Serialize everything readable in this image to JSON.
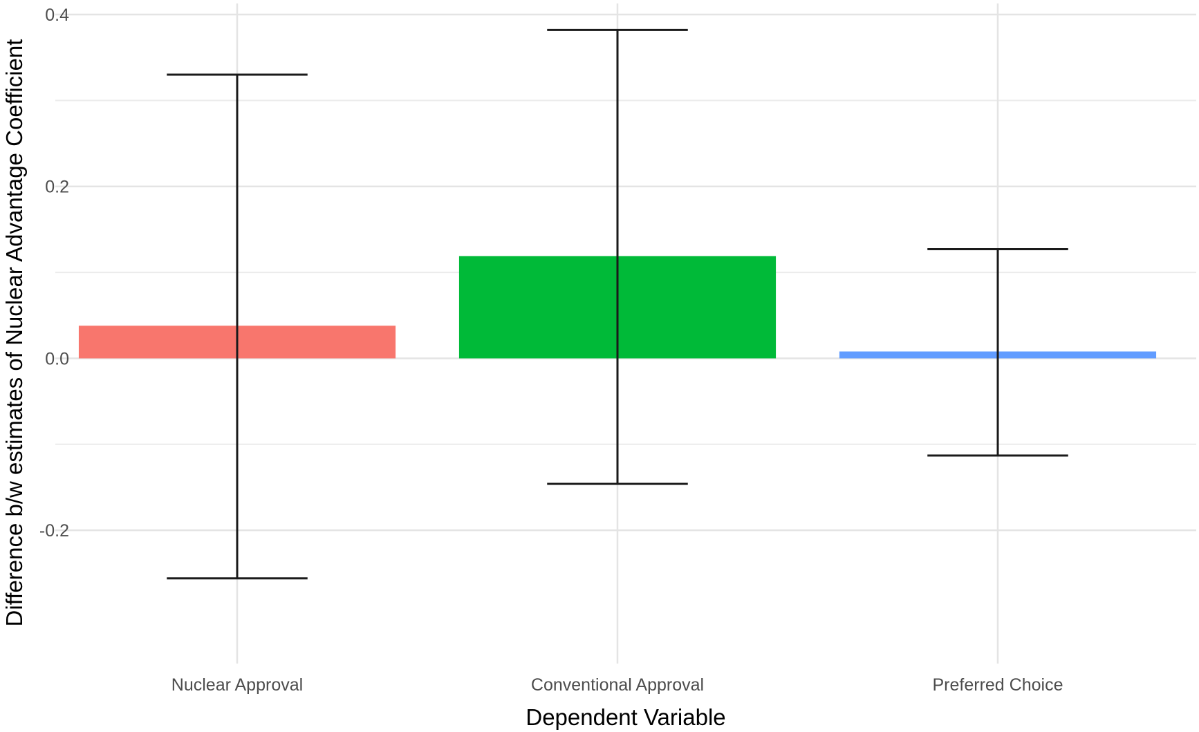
{
  "chart_data": {
    "type": "bar",
    "title": "",
    "xlabel": "Dependent Variable",
    "ylabel": "Difference b/w estimates of Nuclear Advantage Coefficient",
    "categories": [
      "Nuclear Approval",
      "Conventional Approval",
      "Preferred Choice"
    ],
    "values": [
      0.038,
      0.119,
      0.008
    ],
    "error_low": [
      -0.256,
      -0.146,
      -0.113
    ],
    "error_high": [
      0.33,
      0.382,
      0.127
    ],
    "colors": [
      "#F8766D",
      "#00BA38",
      "#619CFF"
    ],
    "ylim": [
      -0.28,
      0.41
    ],
    "yticks": [
      -0.2,
      0.0,
      0.2,
      0.4
    ],
    "ytick_labels": [
      "-0.2",
      "0.0",
      "0.2",
      "0.4"
    ],
    "grid": true,
    "legend": "none"
  }
}
